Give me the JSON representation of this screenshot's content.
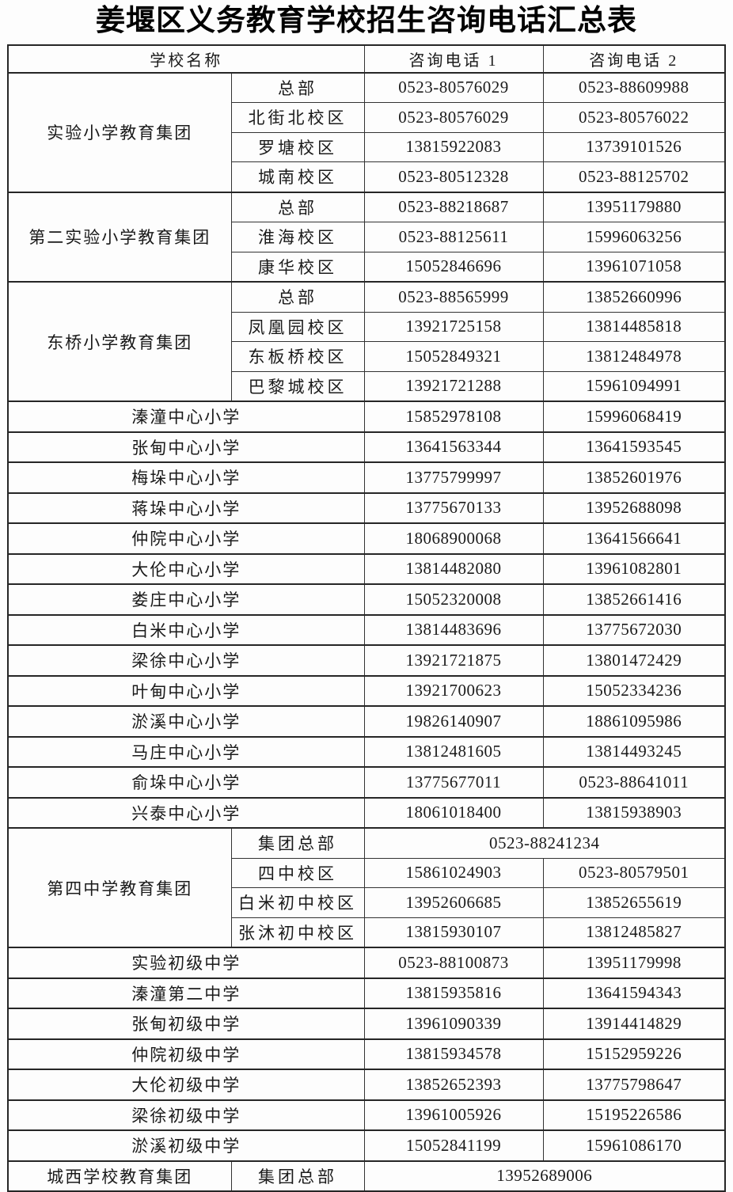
{
  "page": {
    "title": "姜堰区义务教育学校招生咨询电话汇总表",
    "background_color": "#fdfdfd",
    "border_color": "#262626",
    "text_color": "#1a1a1a"
  },
  "table": {
    "headers": {
      "school": "学校名称",
      "phone1": "咨询电话 1",
      "phone2": "咨询电话 2"
    },
    "sections": [
      {
        "type": "group",
        "name": "实验小学教育集团",
        "rows": [
          {
            "campus": "总部",
            "phone1": "0523-80576029",
            "phone2": "0523-88609988"
          },
          {
            "campus": "北街北校区",
            "phone1": "0523-80576029",
            "phone2": "0523-80576022"
          },
          {
            "campus": "罗塘校区",
            "phone1": "13815922083",
            "phone2": "13739101526"
          },
          {
            "campus": "城南校区",
            "phone1": "0523-80512328",
            "phone2": "0523-88125702"
          }
        ]
      },
      {
        "type": "group",
        "name": "第二实验小学教育集团",
        "rows": [
          {
            "campus": "总部",
            "phone1": "0523-88218687",
            "phone2": "13951179880"
          },
          {
            "campus": "淮海校区",
            "phone1": "0523-88125611",
            "phone2": "15996063256"
          },
          {
            "campus": "康华校区",
            "phone1": "15052846696",
            "phone2": "13961071058"
          }
        ]
      },
      {
        "type": "group",
        "name": "东桥小学教育集团",
        "rows": [
          {
            "campus": "总部",
            "phone1": "0523-88565999",
            "phone2": "13852660996"
          },
          {
            "campus": "凤凰园校区",
            "phone1": "13921725158",
            "phone2": "13814485818"
          },
          {
            "campus": "东板桥校区",
            "phone1": "15052849321",
            "phone2": "13812484978"
          },
          {
            "campus": "巴黎城校区",
            "phone1": "13921721288",
            "phone2": "15961094991"
          }
        ]
      },
      {
        "type": "single",
        "name": "溱潼中心小学",
        "phone1": "15852978108",
        "phone2": "15996068419"
      },
      {
        "type": "single",
        "name": "张甸中心小学",
        "phone1": "13641563344",
        "phone2": "13641593545"
      },
      {
        "type": "single",
        "name": "梅垛中心小学",
        "phone1": "13775799997",
        "phone2": "13852601976"
      },
      {
        "type": "single",
        "name": "蒋垛中心小学",
        "phone1": "13775670133",
        "phone2": "13952688098"
      },
      {
        "type": "single",
        "name": "仲院中心小学",
        "phone1": "18068900068",
        "phone2": "13641566641"
      },
      {
        "type": "single",
        "name": "大伦中心小学",
        "phone1": "13814482080",
        "phone2": "13961082801"
      },
      {
        "type": "single",
        "name": "娄庄中心小学",
        "phone1": "15052320008",
        "phone2": "13852661416"
      },
      {
        "type": "single",
        "name": "白米中心小学",
        "phone1": "13814483696",
        "phone2": "13775672030"
      },
      {
        "type": "single",
        "name": "梁徐中心小学",
        "phone1": "13921721875",
        "phone2": "13801472429"
      },
      {
        "type": "single",
        "name": "叶甸中心小学",
        "phone1": "13921700623",
        "phone2": "15052334236"
      },
      {
        "type": "single",
        "name": "淤溪中心小学",
        "phone1": "19826140907",
        "phone2": "18861095986"
      },
      {
        "type": "single",
        "name": "马庄中心小学",
        "phone1": "13812481605",
        "phone2": "13814493245"
      },
      {
        "type": "single",
        "name": "俞垛中心小学",
        "phone1": "13775677011",
        "phone2": "0523-88641011"
      },
      {
        "type": "single",
        "name": "兴泰中心小学",
        "phone1": "18061018400",
        "phone2": "13815938903"
      },
      {
        "type": "group",
        "name": "第四中学教育集团",
        "rows": [
          {
            "campus": "集团总部",
            "phone1": "0523-88241234",
            "phone2": null
          },
          {
            "campus": "四中校区",
            "phone1": "15861024903",
            "phone2": "0523-80579501"
          },
          {
            "campus": "白米初中校区",
            "phone1": "13952606685",
            "phone2": "13852655619"
          },
          {
            "campus": "张沐初中校区",
            "phone1": "13815930107",
            "phone2": "13812485827"
          }
        ]
      },
      {
        "type": "single",
        "name": "实验初级中学",
        "phone1": "0523-88100873",
        "phone2": "13951179998"
      },
      {
        "type": "single",
        "name": "溱潼第二中学",
        "phone1": "13815935816",
        "phone2": "13641594343"
      },
      {
        "type": "single",
        "name": "张甸初级中学",
        "phone1": "13961090339",
        "phone2": "13914414829"
      },
      {
        "type": "single",
        "name": "仲院初级中学",
        "phone1": "13815934578",
        "phone2": "15152959226"
      },
      {
        "type": "single",
        "name": "大伦初级中学",
        "phone1": "13852652393",
        "phone2": "13775798647"
      },
      {
        "type": "single",
        "name": "梁徐初级中学",
        "phone1": "13961005926",
        "phone2": "15195226586"
      },
      {
        "type": "single",
        "name": "淤溪初级中学",
        "phone1": "15052841199",
        "phone2": "15961086170"
      },
      {
        "type": "group",
        "name": "城西学校教育集团",
        "rows": [
          {
            "campus": "集团总部",
            "phone1": "13952689006",
            "phone2": null
          }
        ]
      }
    ]
  }
}
